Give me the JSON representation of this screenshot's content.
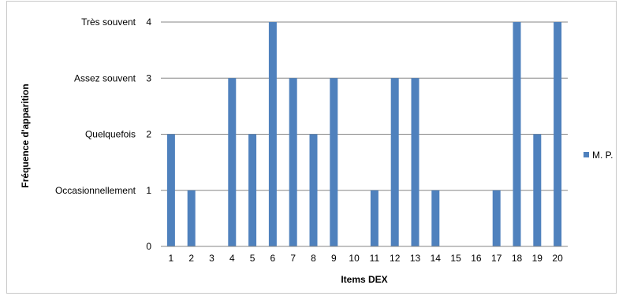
{
  "chart_data": {
    "type": "bar",
    "title": "",
    "xlabel": "Items DEX",
    "ylabel": "Fréquence d'apparition",
    "categories": [
      "1",
      "2",
      "3",
      "4",
      "5",
      "6",
      "7",
      "8",
      "9",
      "10",
      "11",
      "12",
      "13",
      "14",
      "15",
      "16",
      "17",
      "18",
      "19",
      "20"
    ],
    "series": [
      {
        "name": "M. P.",
        "color": "#4f81bd",
        "values": [
          2,
          1,
          0,
          3,
          2,
          4,
          3,
          2,
          3,
          0,
          1,
          3,
          3,
          1,
          0,
          0,
          1,
          4,
          2,
          4
        ]
      }
    ],
    "ylim": [
      0,
      4
    ],
    "yticks": [
      {
        "value": 0,
        "number": "0",
        "label": ""
      },
      {
        "value": 1,
        "number": "1",
        "label": "Occasionnellement"
      },
      {
        "value": 2,
        "number": "2",
        "label": "Quelquefois"
      },
      {
        "value": 3,
        "number": "3",
        "label": "Assez souvent"
      },
      {
        "value": 4,
        "number": "4",
        "label": "Très souvent"
      }
    ],
    "grid": true,
    "legend_position": "right"
  }
}
